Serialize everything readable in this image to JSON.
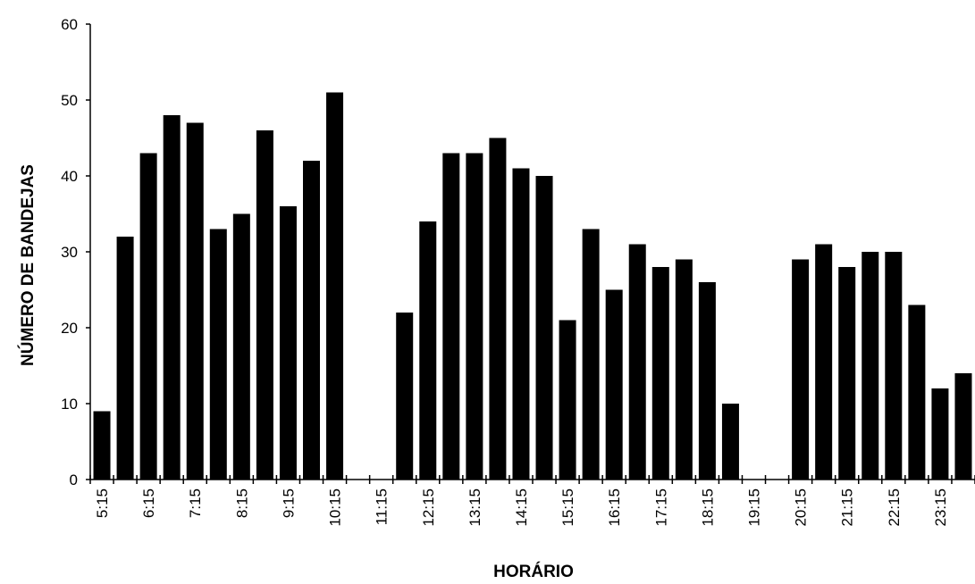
{
  "chart_data": {
    "type": "bar",
    "xlabel": "HORÁRIO",
    "ylabel": "NÚMERO DE BANDEJAS",
    "ylim": [
      0,
      60
    ],
    "yticks": [
      0,
      10,
      20,
      30,
      40,
      50,
      60
    ],
    "x_tick_labels": [
      "5:15",
      "6:15",
      "7:15",
      "8:15",
      "9:15",
      "10:15",
      "11:15",
      "12:15",
      "13:15",
      "14:15",
      "15:15",
      "16:15",
      "17:15",
      "18:15",
      "19:15",
      "20:15",
      "21:15",
      "22:15",
      "23:15"
    ],
    "categories": [
      "5:15",
      "5:45",
      "6:15",
      "6:45",
      "7:15",
      "7:45",
      "8:15",
      "8:45",
      "9:15",
      "9:45",
      "10:15",
      "10:45",
      "11:15",
      "11:45",
      "12:15",
      "12:45",
      "13:15",
      "13:45",
      "14:15",
      "14:45",
      "15:15",
      "15:45",
      "16:15",
      "16:45",
      "17:15",
      "17:45",
      "18:15",
      "18:45",
      "19:15",
      "19:45",
      "20:15",
      "20:45",
      "21:15",
      "21:45",
      "22:15",
      "22:45",
      "23:15",
      "23:45"
    ],
    "values": [
      9,
      32,
      43,
      48,
      47,
      33,
      35,
      46,
      36,
      42,
      51,
      0,
      0,
      22,
      34,
      43,
      43,
      45,
      41,
      40,
      21,
      33,
      25,
      31,
      28,
      29,
      26,
      10,
      0,
      0,
      29,
      31,
      28,
      30,
      30,
      23,
      12,
      14
    ],
    "grid": false,
    "legend": "none"
  }
}
